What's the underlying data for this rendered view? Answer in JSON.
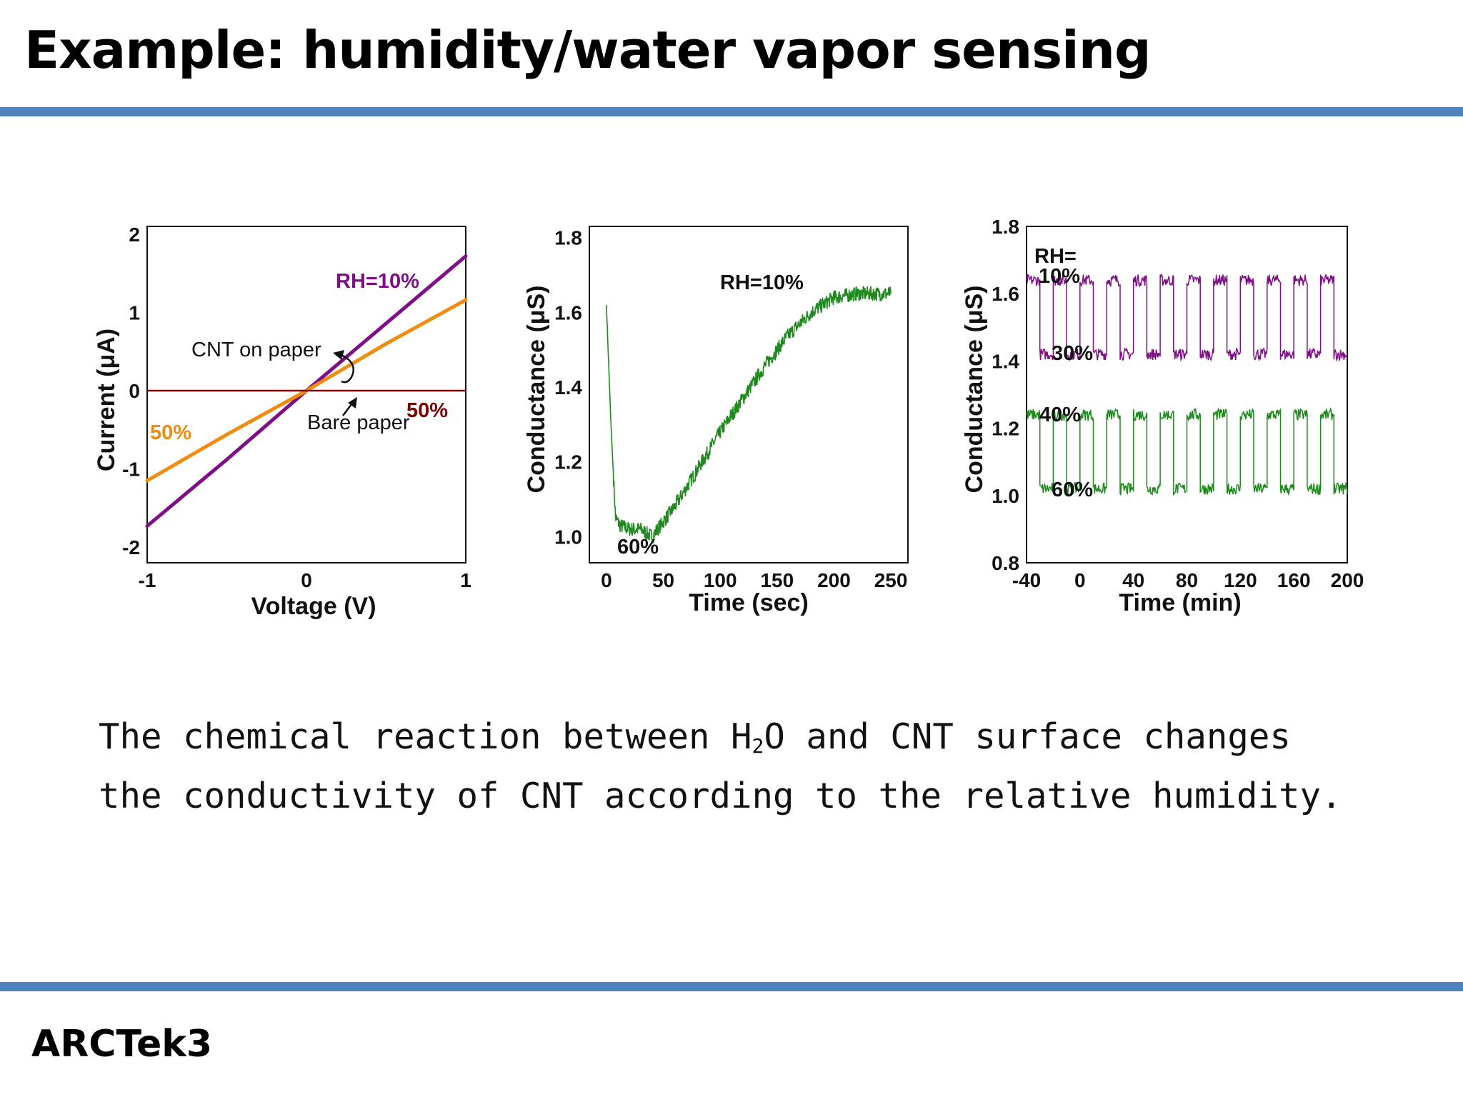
{
  "slide": {
    "title": "Example: humidity/water vapor sensing",
    "footer": "ARCTek3",
    "accent_color": "#4f81bd",
    "caption": {
      "line1_before": "The chemical reaction between H",
      "line1_sub": "2",
      "line1_after": "O and CNT surface changes",
      "line2": "the conductivity of CNT according to the relative humidity."
    }
  },
  "chart_data": [
    {
      "type": "line",
      "xlabel": "Voltage (V)",
      "ylabel": "Current (μA)",
      "xlim": [
        -1,
        1
      ],
      "ylim": [
        -2.2,
        2.1
      ],
      "xticks": [
        -1,
        0,
        1
      ],
      "xtick_labels": [
        "-1",
        "0",
        "1"
      ],
      "yticks": [
        -2,
        -1,
        0,
        1,
        2
      ],
      "ytick_labels": [
        "-2",
        "-1",
        "0",
        "1",
        "2"
      ],
      "series": [
        {
          "name": "RH=10%",
          "color": "#7f0f87",
          "x": [
            -1,
            -0.5,
            0,
            0.5,
            1
          ],
          "y": [
            -1.73,
            -0.88,
            0,
            0.86,
            1.72
          ]
        },
        {
          "name": "50%",
          "color": "#f08c0f",
          "x": [
            -1,
            -0.5,
            0,
            0.5,
            1
          ],
          "y": [
            -1.15,
            -0.56,
            0,
            0.6,
            1.16
          ]
        },
        {
          "name": "50%",
          "color": "#7f0000",
          "x": [
            -1,
            1
          ],
          "y": [
            0,
            0
          ]
        }
      ],
      "annotations": [
        "CNT on paper",
        "Bare paper"
      ]
    },
    {
      "type": "line",
      "xlabel": "Time (sec)",
      "ylabel": "Conductance (μS)",
      "xlim": [
        -15,
        265
      ],
      "ylim": [
        0.93,
        1.83
      ],
      "xticks": [
        0,
        50,
        100,
        150,
        200,
        250
      ],
      "xtick_labels": [
        "0",
        "50",
        "100",
        "150",
        "200",
        "250"
      ],
      "yticks": [
        1.0,
        1.2,
        1.4,
        1.6,
        1.8
      ],
      "ytick_labels": [
        "1.0",
        "1.2",
        "1.4",
        "1.6",
        "1.8"
      ],
      "series": [
        {
          "name": "",
          "color": "#1e8a1e",
          "x": [
            0,
            4,
            8,
            12,
            20,
            30,
            40,
            50,
            60,
            80,
            100,
            120,
            140,
            160,
            180,
            200,
            220,
            240,
            250
          ],
          "y": [
            1.62,
            1.3,
            1.05,
            1.03,
            1.02,
            1.02,
            1.0,
            1.04,
            1.08,
            1.18,
            1.28,
            1.37,
            1.46,
            1.54,
            1.6,
            1.64,
            1.65,
            1.65,
            1.65
          ]
        }
      ],
      "annotations": [
        "RH=10%",
        "60%"
      ]
    },
    {
      "type": "line",
      "xlabel": "Time (min)",
      "ylabel": "Conductance (μS)",
      "xlim": [
        -40,
        200
      ],
      "ylim": [
        0.8,
        1.8
      ],
      "xticks": [
        -40,
        0,
        40,
        80,
        120,
        160,
        200
      ],
      "xtick_labels": [
        "-40",
        "0",
        "40",
        "80",
        "120",
        "160",
        "200"
      ],
      "yticks": [
        0.8,
        1.0,
        1.2,
        1.4,
        1.6,
        1.8
      ],
      "ytick_labels": [
        "0.8",
        "1.0",
        "1.2",
        "1.4",
        "1.6",
        "1.8"
      ],
      "series": [
        {
          "name": "10% / 30%",
          "color": "#7f0f87",
          "high": 1.64,
          "low": 1.42,
          "period_min": 20,
          "start_min": -40,
          "end_min": 200
        },
        {
          "name": "40% / 60%",
          "color": "#1e8a1e",
          "high": 1.24,
          "low": 1.02,
          "period_min": 20,
          "start_min": -40,
          "end_min": 200
        }
      ],
      "annotations": [
        "RH=",
        "10%",
        "30%",
        "40%",
        "60%"
      ]
    }
  ]
}
